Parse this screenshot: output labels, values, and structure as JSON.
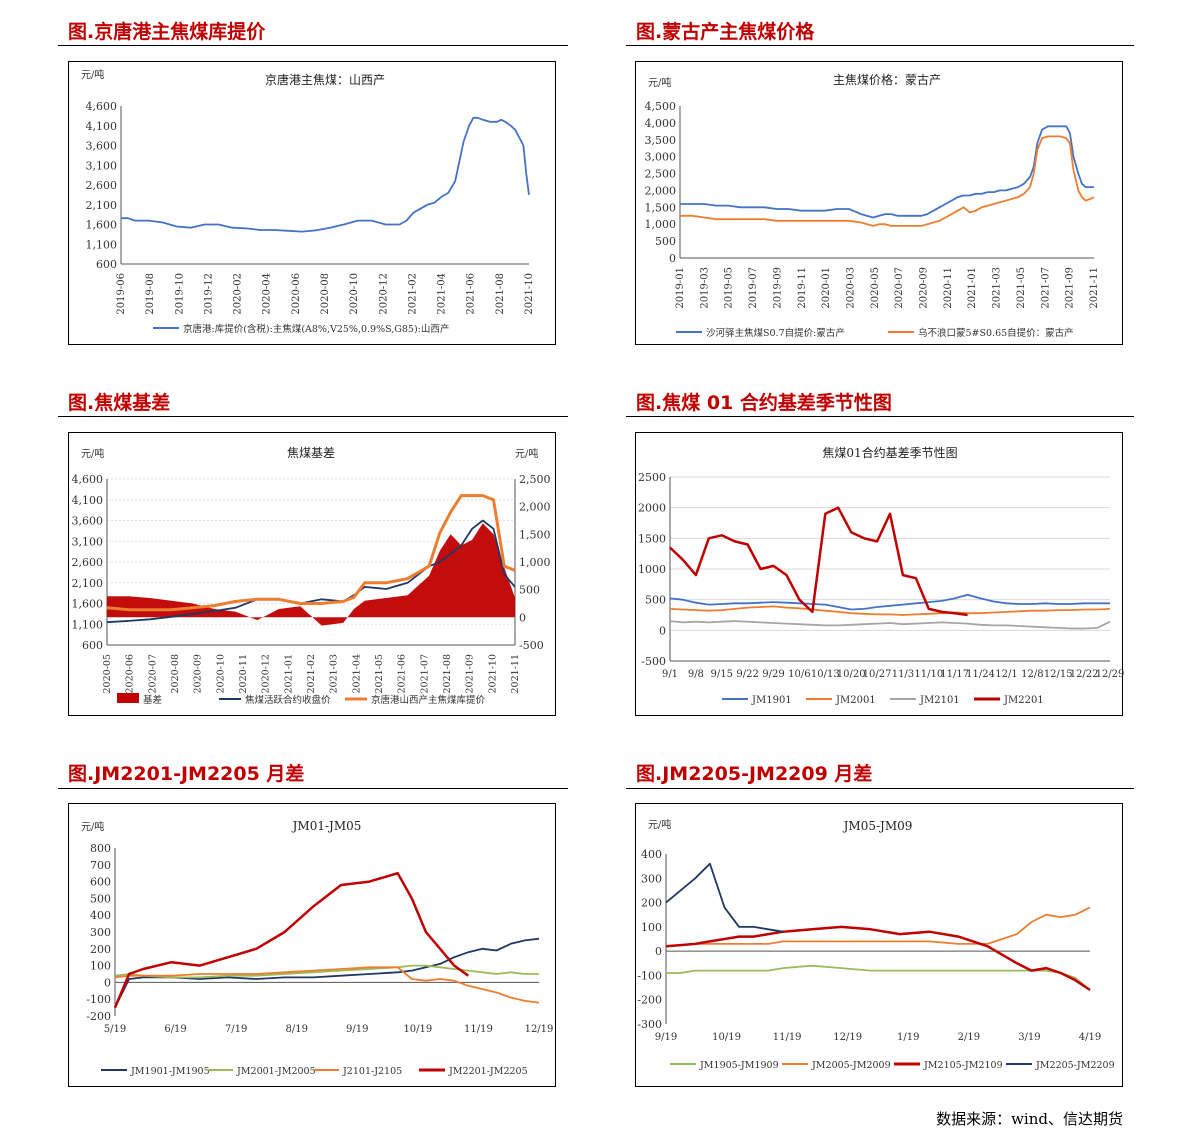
{
  "sections": [
    {
      "title": "图.京唐港主焦煤库提价"
    },
    {
      "title": "图.蒙古产主焦煤价格"
    },
    {
      "title": "图.焦煤基差"
    },
    {
      "title": "图.焦煤 01 合约基差季节性图"
    },
    {
      "title": "图.JM2201-JM2205 月差"
    },
    {
      "title": "图.JM2205-JM2209 月差"
    }
  ],
  "footer": "数据来源：wind、信达期货",
  "chart_data": [
    {
      "type": "line",
      "title": "京唐港主焦煤：山西产",
      "unit": "元/吨",
      "ylim": [
        600,
        4600
      ],
      "yticks": [
        "4,600",
        "4,100",
        "3,600",
        "3,100",
        "2,600",
        "2,100",
        "1,600",
        "1,100",
        "600"
      ],
      "xlabels": [
        "2019-06",
        "2019-08",
        "2019-10",
        "2019-12",
        "2020-02",
        "2020-04",
        "2020-06",
        "2020-08",
        "2020-10",
        "2020-12",
        "2021-02",
        "2021-04",
        "2021-06",
        "2021-08",
        "2021-10"
      ],
      "x": [
        0,
        0.5,
        1,
        2,
        3,
        4,
        5,
        6,
        7,
        8,
        9,
        10,
        11,
        12,
        13,
        14,
        15,
        16,
        17,
        18,
        19,
        20,
        20.5,
        21,
        22,
        22.5,
        23,
        23.5,
        24,
        24.3,
        24.6,
        25,
        25.3,
        25.6,
        26,
        26.5,
        27,
        27.3,
        27.6,
        28,
        28.3,
        28.6,
        28.9,
        29.1,
        29.3
      ],
      "series": [
        {
          "name": "京唐港:库提价(含税):主焦煤(A8%,V25%,0.9%S,G85):山西产",
          "color": "#4472c4",
          "values": [
            1760,
            1760,
            1700,
            1700,
            1650,
            1550,
            1520,
            1600,
            1600,
            1520,
            1500,
            1460,
            1460,
            1440,
            1420,
            1450,
            1520,
            1600,
            1700,
            1700,
            1600,
            1600,
            1700,
            1900,
            2100,
            2150,
            2300,
            2400,
            2700,
            3200,
            3700,
            4100,
            4300,
            4300,
            4250,
            4200,
            4200,
            4250,
            4200,
            4100,
            4000,
            3800,
            3600,
            2900,
            2350
          ]
        }
      ]
    },
    {
      "type": "line",
      "title": "主焦煤价格：蒙古产",
      "unit": "元/吨",
      "ylim": [
        0,
        4500
      ],
      "yticks": [
        "4,500",
        "4,000",
        "3,500",
        "3,000",
        "2,500",
        "2,000",
        "1,500",
        "1,000",
        "500",
        "0"
      ],
      "xlabels": [
        "2019-01",
        "2019-03",
        "2019-05",
        "2019-07",
        "2019-09",
        "2019-11",
        "2020-01",
        "2020-03",
        "2020-05",
        "2020-07",
        "2020-09",
        "2020-11",
        "2021-01",
        "2021-03",
        "2021-05",
        "2021-07",
        "2021-09",
        "2021-11"
      ],
      "x": [
        0,
        1,
        2,
        3,
        4,
        5,
        6,
        7,
        8,
        9,
        10,
        11,
        12,
        13,
        14,
        15,
        16,
        16.5,
        17,
        17.5,
        18,
        18.5,
        19,
        20,
        20.5,
        21,
        21.5,
        22,
        22.5,
        23,
        23.5,
        24,
        24.5,
        25,
        25.5,
        26,
        26.5,
        27,
        27.5,
        28,
        28.5,
        29,
        29.3,
        29.6,
        30,
        30.5,
        31,
        31.5,
        32,
        32.3,
        32.6,
        33,
        33.3,
        33.6,
        34,
        34.3
      ],
      "series": [
        {
          "name": "沙河驿主焦煤S0.7自提价:蒙古产",
          "color": "#4472c4",
          "values": [
            1600,
            1600,
            1600,
            1550,
            1550,
            1500,
            1500,
            1500,
            1450,
            1450,
            1400,
            1400,
            1400,
            1450,
            1450,
            1300,
            1200,
            1250,
            1300,
            1300,
            1250,
            1250,
            1250,
            1250,
            1300,
            1400,
            1500,
            1600,
            1700,
            1800,
            1850,
            1850,
            1900,
            1900,
            1950,
            1950,
            2000,
            2000,
            2050,
            2100,
            2200,
            2400,
            2700,
            3400,
            3800,
            3900,
            3900,
            3900,
            3900,
            3700,
            3000,
            2500,
            2200,
            2100,
            2100,
            2100
          ]
        },
        {
          "name": "乌不浪口蒙5#S0.65自提价：蒙古产",
          "color": "#ed7d31",
          "values": [
            1250,
            1250,
            1200,
            1150,
            1150,
            1150,
            1150,
            1150,
            1100,
            1100,
            1100,
            1100,
            1100,
            1100,
            1100,
            1050,
            950,
            1000,
            1000,
            950,
            950,
            950,
            950,
            950,
            1000,
            1050,
            1100,
            1200,
            1300,
            1400,
            1500,
            1350,
            1400,
            1500,
            1550,
            1600,
            1650,
            1700,
            1750,
            1800,
            1900,
            2100,
            2500,
            3200,
            3550,
            3600,
            3600,
            3600,
            3550,
            3400,
            2600,
            2000,
            1800,
            1700,
            1750,
            1800
          ]
        }
      ]
    },
    {
      "type": "bar+line",
      "title": "焦煤基差",
      "unit_left": "元/吨",
      "unit_right": "元/吨",
      "ylim_left": [
        600,
        4600
      ],
      "ylim_right": [
        -500,
        2500
      ],
      "yticks_left": [
        "4,600",
        "4,100",
        "3,600",
        "3,100",
        "2,600",
        "2,100",
        "1,600",
        "1,100",
        "600"
      ],
      "yticks_right": [
        "2,500",
        "2,000",
        "1,500",
        "1,000",
        "500",
        "0",
        "-500"
      ],
      "xlabels": [
        "2020-05",
        "2020-06",
        "2020-07",
        "2020-08",
        "2020-09",
        "2020-10",
        "2020-11",
        "2020-12",
        "2021-01",
        "2021-02",
        "2021-03",
        "2021-04",
        "2021-05",
        "2021-06",
        "2021-07",
        "2021-08",
        "2021-09",
        "2021-10",
        "2021-11"
      ],
      "x": [
        0,
        1,
        2,
        3,
        4,
        5,
        6,
        7,
        8,
        9,
        10,
        11,
        11.5,
        12,
        13,
        14,
        15,
        15.5,
        16,
        16.5,
        17,
        17.5,
        18,
        18.5,
        19
      ],
      "series": [
        {
          "name": "基差",
          "color": "#c00000",
          "values": [
            380,
            380,
            350,
            300,
            250,
            150,
            100,
            -50,
            150,
            200,
            -150,
            -100,
            150,
            300,
            350,
            400,
            750,
            1200,
            1500,
            1300,
            1400,
            1700,
            1500,
            900,
            350
          ]
        },
        {
          "name": "焦煤活跃合约收盘价",
          "color": "#1f3864",
          "values": [
            1150,
            1180,
            1220,
            1280,
            1350,
            1420,
            1500,
            1700,
            1700,
            1600,
            1700,
            1650,
            1800,
            2000,
            1950,
            2100,
            2500,
            2600,
            2800,
            3000,
            3400,
            3600,
            3400,
            2300,
            2000
          ]
        },
        {
          "name": "京唐港山西产主焦煤库提价",
          "color": "#ed7d31",
          "values": [
            1500,
            1450,
            1450,
            1450,
            1500,
            1550,
            1650,
            1700,
            1700,
            1600,
            1600,
            1650,
            1750,
            2100,
            2100,
            2200,
            2500,
            3300,
            3800,
            4200,
            4200,
            4200,
            4100,
            2500,
            2400
          ]
        }
      ]
    },
    {
      "type": "line",
      "title": "焦煤01合约基差季节性图",
      "ylim": [
        -500,
        2500
      ],
      "yticks": [
        "2500",
        "2000",
        "1500",
        "1000",
        "500",
        "0",
        "-500"
      ],
      "xlabels": [
        "9/1",
        "9/8",
        "9/15",
        "9/22",
        "9/29",
        "10/6",
        "10/13",
        "10/20",
        "10/27",
        "11/3",
        "11/10",
        "11/17",
        "11/24",
        "12/1",
        "12/8",
        "12/15",
        "12/22",
        "12/29"
      ],
      "x": [
        0,
        0.5,
        1,
        1.5,
        2,
        2.5,
        3,
        3.5,
        4,
        4.5,
        5,
        5.5,
        6,
        6.5,
        7,
        7.5,
        8,
        8.5,
        9,
        9.5,
        10,
        10.5,
        11,
        11.5,
        12,
        12.5,
        13,
        13.5,
        14,
        14.5,
        15,
        15.5,
        16,
        16.5,
        17
      ],
      "series": [
        {
          "name": "JM1901",
          "color": "#4472c4",
          "values": [
            520,
            500,
            450,
            420,
            430,
            440,
            440,
            450,
            460,
            450,
            440,
            430,
            420,
            380,
            340,
            350,
            380,
            400,
            420,
            440,
            460,
            480,
            520,
            580,
            520,
            470,
            440,
            430,
            430,
            440,
            430,
            430,
            440,
            440,
            440
          ]
        },
        {
          "name": "JM2001",
          "color": "#ed7d31",
          "values": [
            350,
            340,
            330,
            320,
            330,
            350,
            370,
            380,
            390,
            370,
            360,
            340,
            320,
            300,
            280,
            270,
            260,
            260,
            250,
            260,
            270,
            280,
            290,
            280,
            280,
            290,
            300,
            310,
            320,
            320,
            330,
            330,
            340,
            340,
            350
          ]
        },
        {
          "name": "JM2101",
          "color": "#a5a5a5",
          "values": [
            150,
            130,
            140,
            130,
            140,
            150,
            140,
            130,
            120,
            110,
            100,
            90,
            80,
            80,
            90,
            100,
            110,
            120,
            100,
            110,
            120,
            130,
            120,
            110,
            90,
            80,
            80,
            70,
            60,
            50,
            40,
            30,
            30,
            40,
            140
          ]
        },
        {
          "name": "JM2201",
          "color": "#c00000",
          "values": [
            1350,
            1150,
            900,
            1500,
            1550,
            1450,
            1400,
            1000,
            1050,
            900,
            500,
            300,
            1900,
            2000,
            1600,
            1500,
            1450,
            1900,
            900,
            850,
            350,
            300,
            280,
            250,
            null,
            null,
            null,
            null,
            null,
            null,
            null,
            null,
            null,
            null,
            null
          ]
        }
      ]
    },
    {
      "type": "line",
      "title": "JM01-JM05",
      "unit": "元/吨",
      "ylim": [
        -200,
        800
      ],
      "yticks": [
        "800",
        "700",
        "600",
        "500",
        "400",
        "300",
        "200",
        "100",
        "0",
        "-100",
        "-200"
      ],
      "xlabels": [
        "5/19",
        "6/19",
        "7/19",
        "8/19",
        "9/19",
        "10/19",
        "11/19",
        "12/19"
      ],
      "x": [
        0,
        0.25,
        0.5,
        1,
        1.5,
        2,
        2.5,
        3,
        3.5,
        4,
        4.5,
        5,
        5.25,
        5.5,
        5.75,
        6,
        6.25,
        6.5,
        6.75,
        7,
        7.25,
        7.5
      ],
      "series": [
        {
          "name": "JM1901-JM1905",
          "color": "#1f3864",
          "values": [
            -150,
            20,
            30,
            30,
            20,
            30,
            20,
            30,
            30,
            40,
            50,
            60,
            70,
            90,
            110,
            150,
            180,
            200,
            190,
            230,
            250,
            260
          ]
        },
        {
          "name": "JM2001-JM2005",
          "color": "#9bbb59",
          "values": [
            40,
            50,
            40,
            30,
            30,
            40,
            40,
            50,
            60,
            70,
            80,
            90,
            100,
            100,
            90,
            80,
            70,
            60,
            50,
            60,
            50,
            50
          ]
        },
        {
          "name": "J2101-J2105",
          "color": "#ed7d31",
          "values": [
            30,
            40,
            40,
            40,
            50,
            50,
            50,
            60,
            70,
            80,
            90,
            90,
            20,
            10,
            20,
            10,
            -20,
            -40,
            -60,
            -90,
            -110,
            -120
          ]
        },
        {
          "name": "JM2201-JM2205",
          "color": "#c00000",
          "values": [
            -150,
            50,
            80,
            120,
            100,
            150,
            200,
            300,
            450,
            580,
            600,
            650,
            500,
            300,
            200,
            100,
            40,
            null,
            null,
            null,
            null,
            null
          ]
        }
      ]
    },
    {
      "type": "line",
      "title": "JM05-JM09",
      "unit": "元/吨",
      "ylim": [
        -300,
        400
      ],
      "yticks": [
        "400",
        "300",
        "200",
        "100",
        "0",
        "-100",
        "-200",
        "-300"
      ],
      "xlabels": [
        "9/19",
        "10/19",
        "11/19",
        "12/19",
        "1/19",
        "2/19",
        "3/19",
        "4/19"
      ],
      "x": [
        0,
        0.25,
        0.5,
        0.75,
        1,
        1.25,
        1.5,
        1.75,
        2,
        2.5,
        3,
        3.5,
        4,
        4.5,
        5,
        5.5,
        6,
        6.25,
        6.5,
        6.75,
        7,
        7.25
      ],
      "series": [
        {
          "name": "JM1905-JM1909",
          "color": "#9bbb59",
          "values": [
            -90,
            -90,
            -80,
            -80,
            -80,
            -80,
            -80,
            -80,
            -70,
            -60,
            -70,
            -80,
            -80,
            -80,
            -80,
            -80,
            -80,
            -80,
            -80,
            -90,
            -110,
            -160
          ]
        },
        {
          "name": "JM2005-JM2009",
          "color": "#ed7d31",
          "values": [
            20,
            25,
            30,
            30,
            30,
            30,
            30,
            30,
            40,
            40,
            40,
            40,
            40,
            40,
            30,
            30,
            70,
            120,
            150,
            140,
            150,
            180
          ]
        },
        {
          "name": "JM2105-JM2109",
          "color": "#c00000",
          "values": [
            20,
            25,
            30,
            40,
            50,
            60,
            60,
            70,
            80,
            90,
            100,
            90,
            70,
            80,
            60,
            20,
            -50,
            -80,
            -70,
            -90,
            -120,
            -160
          ]
        },
        {
          "name": "JM2205-JM2209",
          "color": "#1f3864",
          "values": [
            200,
            250,
            300,
            360,
            180,
            100,
            100,
            90,
            80,
            null,
            null,
            null,
            null,
            null,
            null,
            null,
            null,
            null,
            null,
            null,
            null,
            null
          ]
        }
      ]
    }
  ]
}
